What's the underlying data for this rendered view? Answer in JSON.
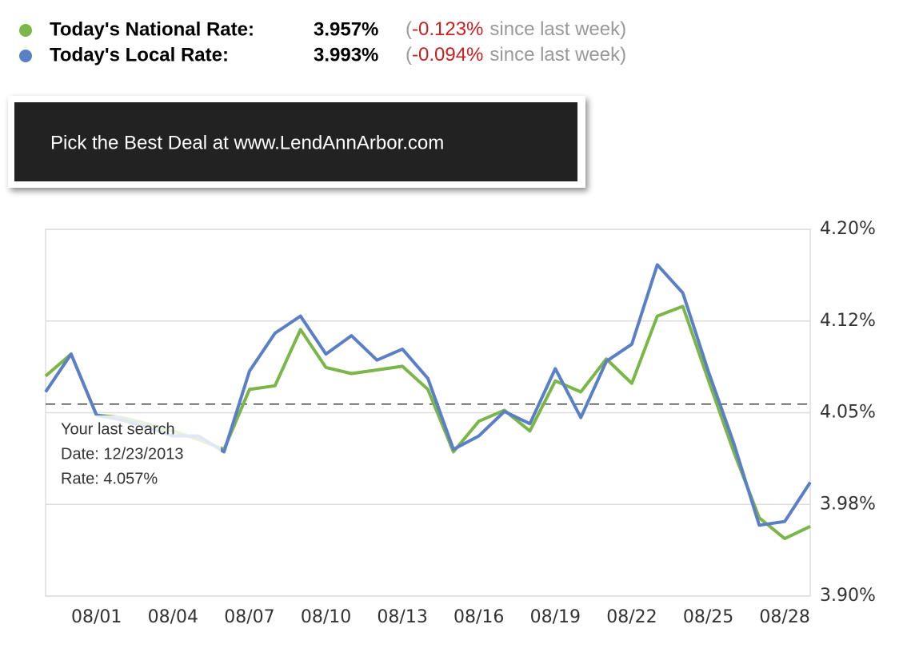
{
  "header": {
    "rows": [
      {
        "label": "Today's National Rate:",
        "rate": "3.957%",
        "open": "(",
        "change": "-0.123%",
        "note": "since last week)"
      },
      {
        "label": "Today's Local Rate:",
        "rate": "3.993%",
        "open": "(",
        "change": "-0.094%",
        "note": "since last week)"
      }
    ]
  },
  "banner": {
    "text": "Pick the Best Deal at www.LendAnnArbor.com"
  },
  "chart_data": {
    "type": "line",
    "categories": [
      null,
      null,
      "08/01",
      null,
      null,
      "08/04",
      null,
      null,
      "08/07",
      null,
      null,
      "08/10",
      null,
      null,
      "08/13",
      null,
      null,
      "08/16",
      null,
      null,
      "08/19",
      null,
      null,
      "08/22",
      null,
      null,
      "08/25",
      null,
      null,
      "08/28",
      null
    ],
    "series": [
      {
        "color": "#7ab648",
        "values": [
          4.08,
          4.098,
          4.048,
          4.046,
          4.041,
          4.035,
          4.028,
          4.02,
          4.069,
          4.072,
          4.118,
          4.087,
          4.082,
          4.085,
          4.088,
          4.069,
          4.018,
          4.043,
          4.052,
          4.035,
          4.076,
          4.067,
          4.094,
          4.074,
          4.129,
          4.137,
          4.077,
          4.018,
          3.964,
          3.947,
          3.957
        ]
      },
      {
        "color": "#5b7fc7",
        "values": [
          4.067,
          4.098,
          4.048,
          4.044,
          4.038,
          4.031,
          4.031,
          4.018,
          4.084,
          4.115,
          4.129,
          4.098,
          4.113,
          4.093,
          4.102,
          4.078,
          4.02,
          4.031,
          4.051,
          4.041,
          4.086,
          4.046,
          4.092,
          4.106,
          4.171,
          4.148,
          4.084,
          4.025,
          3.958,
          3.961,
          3.993
        ]
      }
    ],
    "ylim": [
      3.9,
      4.2
    ],
    "yticks": [
      {
        "value": 4.2,
        "label": "4.20%"
      },
      {
        "value": 4.125,
        "label": "4.12%"
      },
      {
        "value": 4.05,
        "label": "4.05%"
      },
      {
        "value": 3.975,
        "label": "3.98%"
      },
      {
        "value": 3.9,
        "label": "3.90%"
      }
    ],
    "grid": true,
    "reference_line": 4.057,
    "annotation": [
      "Your last search",
      "Date: 12/23/2013",
      "Rate: 4.057%"
    ]
  }
}
